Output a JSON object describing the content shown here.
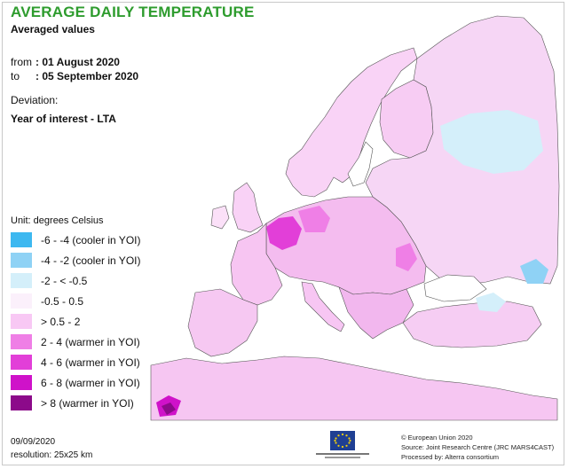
{
  "title": "AVERAGE DAILY TEMPERATURE",
  "subtitle": "Averaged values",
  "period": {
    "from_label": "from",
    "from_value": ": 01 August 2020",
    "to_label": "to",
    "to_value": ": 05 September 2020"
  },
  "deviation_label": "Deviation:",
  "deviation_value": "Year of interest - LTA",
  "legend": {
    "unit": "Unit: degrees Celsius",
    "items": [
      {
        "label": "-6 - -4 (cooler in YOI)",
        "color": "#3db8f0"
      },
      {
        "label": "-4 - -2 (cooler in YOI)",
        "color": "#8fd2f5"
      },
      {
        "label": "-2 - < -0.5",
        "color": "#d4effa"
      },
      {
        "label": "-0.5 - 0.5",
        "color": "#fbf0fb"
      },
      {
        "label": "> 0.5 - 2",
        "color": "#f8c8f4"
      },
      {
        "label": "2 - 4 (warmer in YOI)",
        "color": "#ef7fe6"
      },
      {
        "label": "4 - 6 (warmer in YOI)",
        "color": "#e23fd8"
      },
      {
        "label": "6 - 8 (warmer in YOI)",
        "color": "#cf12c9"
      },
      {
        "label": "> 8 (warmer in YOI)",
        "color": "#8c0a8a"
      }
    ]
  },
  "footer": {
    "date": "09/09/2020",
    "resolution": "resolution: 25x25 km",
    "credit_1": "© European Union 2020",
    "credit_2": "Source: Joint Research Centre (JRC MARS4CAST)",
    "credit_3": "Processed by: Alterra consortium"
  }
}
